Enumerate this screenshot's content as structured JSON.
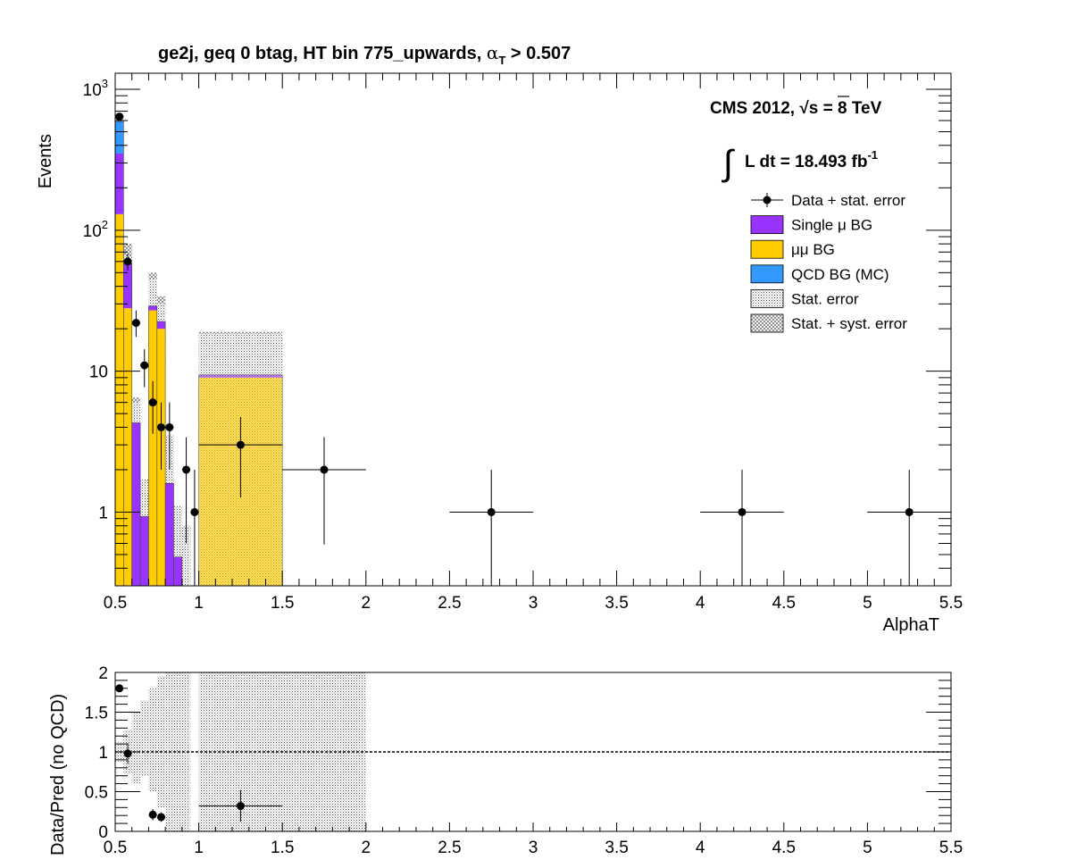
{
  "colors": {
    "single_mu": "#9933ff",
    "mumu": "#ffcc00",
    "qcd": "#3399ff",
    "data": "#000000",
    "stat_error_fill": "#bdbdbd"
  },
  "title": {
    "main": "ge2j, geq 0 btag, HT bin 775_upwards, ",
    "alpha": "α",
    "sub": "T",
    "cut": " > 0.507"
  },
  "cms": {
    "line1_prefix": "CMS 2012, ",
    "sqrt": "√",
    "line1_suffix": "s = 8 TeV",
    "lumi_integral": "∫",
    "lumi_text": "L dt = 18.493 fb",
    "lumi_sup": "-1"
  },
  "legend": [
    {
      "key": "data",
      "label": "Data + stat. error"
    },
    {
      "key": "single_mu",
      "label": "Single μ BG"
    },
    {
      "key": "mumu",
      "label": "μμ BG"
    },
    {
      "key": "qcd",
      "label": "QCD BG (MC)"
    },
    {
      "key": "stat",
      "label": "Stat. error"
    },
    {
      "key": "statsyst",
      "label": "Stat. + syst. error"
    }
  ],
  "chart_data": [
    {
      "type": "bar",
      "stacked": true,
      "log_y": true,
      "xlabel": "AlphaT",
      "ylabel": "Events",
      "xlim": [
        0.5,
        5.5
      ],
      "ylim": [
        0.3,
        1300
      ],
      "x_ticks": [
        0.5,
        1,
        1.5,
        2,
        2.5,
        3,
        3.5,
        4,
        4.5,
        5,
        5.5
      ],
      "x_tick_labels": [
        "0.5",
        "1",
        "1.5",
        "2",
        "2.5",
        "3",
        "3.5",
        "4",
        "4.5",
        "5",
        "5.5"
      ],
      "y_tick_labels": [
        {
          "value": 1,
          "label": "1"
        },
        {
          "value": 10,
          "label": "10"
        },
        {
          "value": 100,
          "base": "10",
          "exp": "2"
        },
        {
          "value": 1000,
          "base": "10",
          "exp": "3"
        }
      ],
      "bins": [
        {
          "lo": 0.5,
          "hi": 0.55,
          "mumu": 130,
          "single_mu": 220,
          "qcd": 240,
          "stat_hi": 660,
          "syst_lo": 0,
          "syst_hi": 0
        },
        {
          "lo": 0.55,
          "hi": 0.6,
          "mumu": 28,
          "single_mu": 30,
          "qcd": 0,
          "stat_hi": 65,
          "syst_lo": 40,
          "syst_hi": 80
        },
        {
          "lo": 0.6,
          "hi": 0.65,
          "mumu": 0,
          "single_mu": 4.3,
          "qcd": 0,
          "stat_hi": 6,
          "syst_lo": 2.8,
          "syst_hi": 6.5
        },
        {
          "lo": 0.65,
          "hi": 0.7,
          "mumu": 0,
          "single_mu": 0.93,
          "qcd": 0,
          "stat_hi": 1.7,
          "syst_lo": 0.5,
          "syst_hi": 1.7
        },
        {
          "lo": 0.7,
          "hi": 0.75,
          "mumu": 27,
          "single_mu": 2,
          "qcd": 0,
          "stat_hi": 45,
          "syst_lo": 15,
          "syst_hi": 50
        },
        {
          "lo": 0.75,
          "hi": 0.8,
          "mumu": 20,
          "single_mu": 2.5,
          "qcd": 0,
          "stat_hi": 30,
          "syst_lo": 8,
          "syst_hi": 34
        },
        {
          "lo": 0.8,
          "hi": 0.85,
          "mumu": 0,
          "single_mu": 1.6,
          "qcd": 0,
          "stat_hi": 3.5,
          "syst_lo": 0.8,
          "syst_hi": 3.5
        },
        {
          "lo": 0.85,
          "hi": 0.9,
          "mumu": 0,
          "single_mu": 0.48,
          "qcd": 0,
          "stat_hi": 1.1,
          "syst_lo": 0.3,
          "syst_hi": 1.1
        },
        {
          "lo": 0.9,
          "hi": 0.95,
          "mumu": 0,
          "single_mu": 0.3,
          "qcd": 0,
          "stat_hi": 0.8,
          "syst_lo": 0.3,
          "syst_hi": 0.8
        },
        {
          "lo": 1.0,
          "hi": 1.5,
          "mumu": 9,
          "single_mu": 0.4,
          "qcd": 0,
          "stat_hi": 18.5,
          "syst_lo": 0.3,
          "syst_hi": 19
        }
      ],
      "data_points": [
        {
          "x": 0.525,
          "xlo": 0.5,
          "xhi": 0.55,
          "y": 640,
          "ylo": 615,
          "yhi": 665
        },
        {
          "x": 0.575,
          "xlo": 0.55,
          "xhi": 0.6,
          "y": 60,
          "ylo": 52,
          "yhi": 68
        },
        {
          "x": 0.625,
          "xlo": 0.6,
          "xhi": 0.65,
          "y": 22,
          "ylo": 17.5,
          "yhi": 27
        },
        {
          "x": 0.675,
          "xlo": 0.65,
          "xhi": 0.7,
          "y": 11,
          "ylo": 7.7,
          "yhi": 14.3
        },
        {
          "x": 0.725,
          "xlo": 0.7,
          "xhi": 0.75,
          "y": 6,
          "ylo": 3.6,
          "yhi": 8.5
        },
        {
          "x": 0.775,
          "xlo": 0.75,
          "xhi": 0.8,
          "y": 4,
          "ylo": 2,
          "yhi": 6
        },
        {
          "x": 0.825,
          "xlo": 0.8,
          "xhi": 0.85,
          "y": 4,
          "ylo": 2,
          "yhi": 6
        },
        {
          "x": 0.925,
          "xlo": 0.9,
          "xhi": 0.95,
          "y": 2,
          "ylo": 0.6,
          "yhi": 3.4
        },
        {
          "x": 0.975,
          "xlo": 0.95,
          "xhi": 1.0,
          "y": 1,
          "ylo": 0.3,
          "yhi": 2
        },
        {
          "x": 1.25,
          "xlo": 1.0,
          "xhi": 1.5,
          "y": 3,
          "ylo": 1.27,
          "yhi": 4.73
        },
        {
          "x": 1.75,
          "xlo": 1.5,
          "xhi": 2.0,
          "y": 2,
          "ylo": 0.59,
          "yhi": 3.41
        },
        {
          "x": 2.75,
          "xlo": 2.5,
          "xhi": 3.0,
          "y": 1,
          "ylo": 0.3,
          "yhi": 2
        },
        {
          "x": 4.25,
          "xlo": 4.0,
          "xhi": 4.5,
          "y": 1,
          "ylo": 0.3,
          "yhi": 2
        },
        {
          "x": 5.25,
          "xlo": 5.0,
          "xhi": 5.5,
          "y": 1,
          "ylo": 0.3,
          "yhi": 2
        }
      ]
    },
    {
      "type": "scatter",
      "xlabel": "",
      "ylabel": "Data/Pred (no QCD)",
      "xlim": [
        0.5,
        5.5
      ],
      "ylim": [
        0,
        2
      ],
      "x_ticks": [
        0.5,
        1,
        1.5,
        2,
        2.5,
        3,
        3.5,
        4,
        4.5,
        5,
        5.5
      ],
      "x_tick_labels": [
        "0.5",
        "1",
        "1.5",
        "2",
        "2.5",
        "3",
        "3.5",
        "4",
        "4.5",
        "5",
        "5.5"
      ],
      "y_ticks": [
        0,
        0.5,
        1,
        1.5,
        2
      ],
      "y_tick_labels": [
        "0",
        "0.5",
        "1",
        "1.5",
        "2"
      ],
      "reference_line": 1,
      "error_bands": [
        {
          "lo": 0.5,
          "hi": 0.55,
          "ymin": 0.88,
          "ymax": 1.12
        },
        {
          "lo": 0.55,
          "hi": 0.6,
          "ymin": 0.72,
          "ymax": 1.28
        },
        {
          "lo": 0.6,
          "hi": 0.65,
          "ymin": 0.6,
          "ymax": 1.5
        },
        {
          "lo": 0.65,
          "hi": 0.7,
          "ymin": 0.7,
          "ymax": 1.65
        },
        {
          "lo": 0.7,
          "hi": 0.75,
          "ymin": 0.5,
          "ymax": 1.8
        },
        {
          "lo": 0.75,
          "hi": 0.8,
          "ymin": 0.3,
          "ymax": 1.95
        },
        {
          "lo": 0.8,
          "hi": 0.85,
          "ymin": 0,
          "ymax": 2
        },
        {
          "lo": 0.85,
          "hi": 0.9,
          "ymin": 0,
          "ymax": 2
        },
        {
          "lo": 0.9,
          "hi": 0.95,
          "ymin": 0,
          "ymax": 2
        },
        {
          "lo": 1.0,
          "hi": 2.0,
          "ymin": 0,
          "ymax": 2
        }
      ],
      "points": [
        {
          "x": 0.525,
          "xlo": 0.5,
          "xhi": 0.55,
          "y": 1.8,
          "ylo": 1.77,
          "yhi": 1.83
        },
        {
          "x": 0.575,
          "xlo": 0.55,
          "xhi": 0.6,
          "y": 0.98,
          "ylo": 0.85,
          "yhi": 1.11
        },
        {
          "x": 0.725,
          "xlo": 0.7,
          "xhi": 0.75,
          "y": 0.21,
          "ylo": 0.14,
          "yhi": 0.28
        },
        {
          "x": 0.775,
          "xlo": 0.75,
          "xhi": 0.8,
          "y": 0.18,
          "ylo": 0.12,
          "yhi": 0.24
        },
        {
          "x": 1.25,
          "xlo": 1.0,
          "xhi": 1.5,
          "y": 0.32,
          "ylo": 0.12,
          "yhi": 0.52
        }
      ]
    }
  ]
}
